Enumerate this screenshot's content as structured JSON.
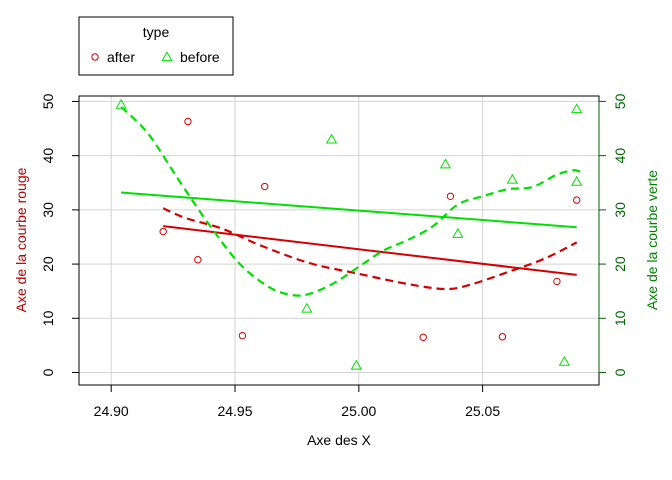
{
  "chart_data": {
    "type": "scatter",
    "title": "",
    "xlabel": "Axe des X",
    "ylabel_left": "Axe de la courbe rouge",
    "ylabel_right": "Axe de la courbe verte",
    "xlim": [
      24.9,
      25.09
    ],
    "ylim": [
      0,
      50
    ],
    "x_ticks": [
      "24.90",
      "24.95",
      "25.00",
      "25.05"
    ],
    "x_tick_values": [
      24.9,
      24.95,
      25.0,
      25.05
    ],
    "y_ticks": [
      "0",
      "10",
      "20",
      "30",
      "40",
      "50"
    ],
    "y_tick_values": [
      0,
      10,
      20,
      30,
      40,
      50
    ],
    "grid": true,
    "legend": {
      "title": "type",
      "placement": "top-left, outside plot",
      "entries": [
        {
          "label": "after",
          "symbol": "circle",
          "color": "#d40000"
        },
        {
          "label": "before",
          "symbol": "triangle",
          "color": "#00e000"
        }
      ]
    },
    "colors": {
      "after": "#d40000",
      "before": "#00e000",
      "left_axis_label": "#b30000",
      "right_axis": "#006400",
      "right_axis_label": "#008000",
      "grid": "#d3d3d3",
      "axis": "#000000"
    },
    "series": [
      {
        "name": "after",
        "marker": "circle",
        "points": [
          {
            "x": 24.921,
            "y": 26.0
          },
          {
            "x": 24.931,
            "y": 46.3
          },
          {
            "x": 24.935,
            "y": 20.8
          },
          {
            "x": 24.953,
            "y": 6.8
          },
          {
            "x": 24.962,
            "y": 34.3
          },
          {
            "x": 25.026,
            "y": 6.5
          },
          {
            "x": 25.037,
            "y": 32.5
          },
          {
            "x": 25.058,
            "y": 6.6
          },
          {
            "x": 25.08,
            "y": 16.8
          },
          {
            "x": 25.088,
            "y": 31.8
          }
        ],
        "linear_fit": {
          "from": [
            24.921,
            27.0
          ],
          "to": [
            25.088,
            18.0
          ]
        },
        "smooth": [
          [
            24.921,
            30.3
          ],
          [
            24.93,
            28.5
          ],
          [
            24.945,
            26.5
          ],
          [
            24.96,
            23.5
          ],
          [
            24.98,
            20.2
          ],
          [
            25.0,
            18.2
          ],
          [
            25.02,
            16.3
          ],
          [
            25.035,
            15.4
          ],
          [
            25.045,
            16.2
          ],
          [
            25.06,
            18.5
          ],
          [
            25.075,
            21.0
          ],
          [
            25.088,
            24.0
          ]
        ]
      },
      {
        "name": "before",
        "marker": "triangle",
        "points": [
          {
            "x": 24.904,
            "y": 49.4
          },
          {
            "x": 24.979,
            "y": 11.8
          },
          {
            "x": 24.989,
            "y": 43.0
          },
          {
            "x": 24.999,
            "y": 1.3
          },
          {
            "x": 25.035,
            "y": 38.4
          },
          {
            "x": 25.04,
            "y": 25.6
          },
          {
            "x": 25.062,
            "y": 35.6
          },
          {
            "x": 25.083,
            "y": 2.0
          },
          {
            "x": 25.088,
            "y": 48.6
          },
          {
            "x": 25.088,
            "y": 35.2
          }
        ],
        "linear_fit": {
          "from": [
            24.904,
            33.2
          ],
          "to": [
            25.088,
            26.8
          ]
        },
        "smooth": [
          [
            24.904,
            49.0
          ],
          [
            24.915,
            44.0
          ],
          [
            24.928,
            35.0
          ],
          [
            24.94,
            27.0
          ],
          [
            24.952,
            20.0
          ],
          [
            24.964,
            15.7
          ],
          [
            24.973,
            14.3
          ],
          [
            24.98,
            14.5
          ],
          [
            24.99,
            16.5
          ],
          [
            25.0,
            19.5
          ],
          [
            25.01,
            22.5
          ],
          [
            25.02,
            24.5
          ],
          [
            25.03,
            27.0
          ],
          [
            25.04,
            31.0
          ],
          [
            25.05,
            32.5
          ],
          [
            25.06,
            33.8
          ],
          [
            25.07,
            34.2
          ],
          [
            25.08,
            36.5
          ],
          [
            25.087,
            37.3
          ],
          [
            25.09,
            36.8
          ]
        ]
      }
    ]
  }
}
